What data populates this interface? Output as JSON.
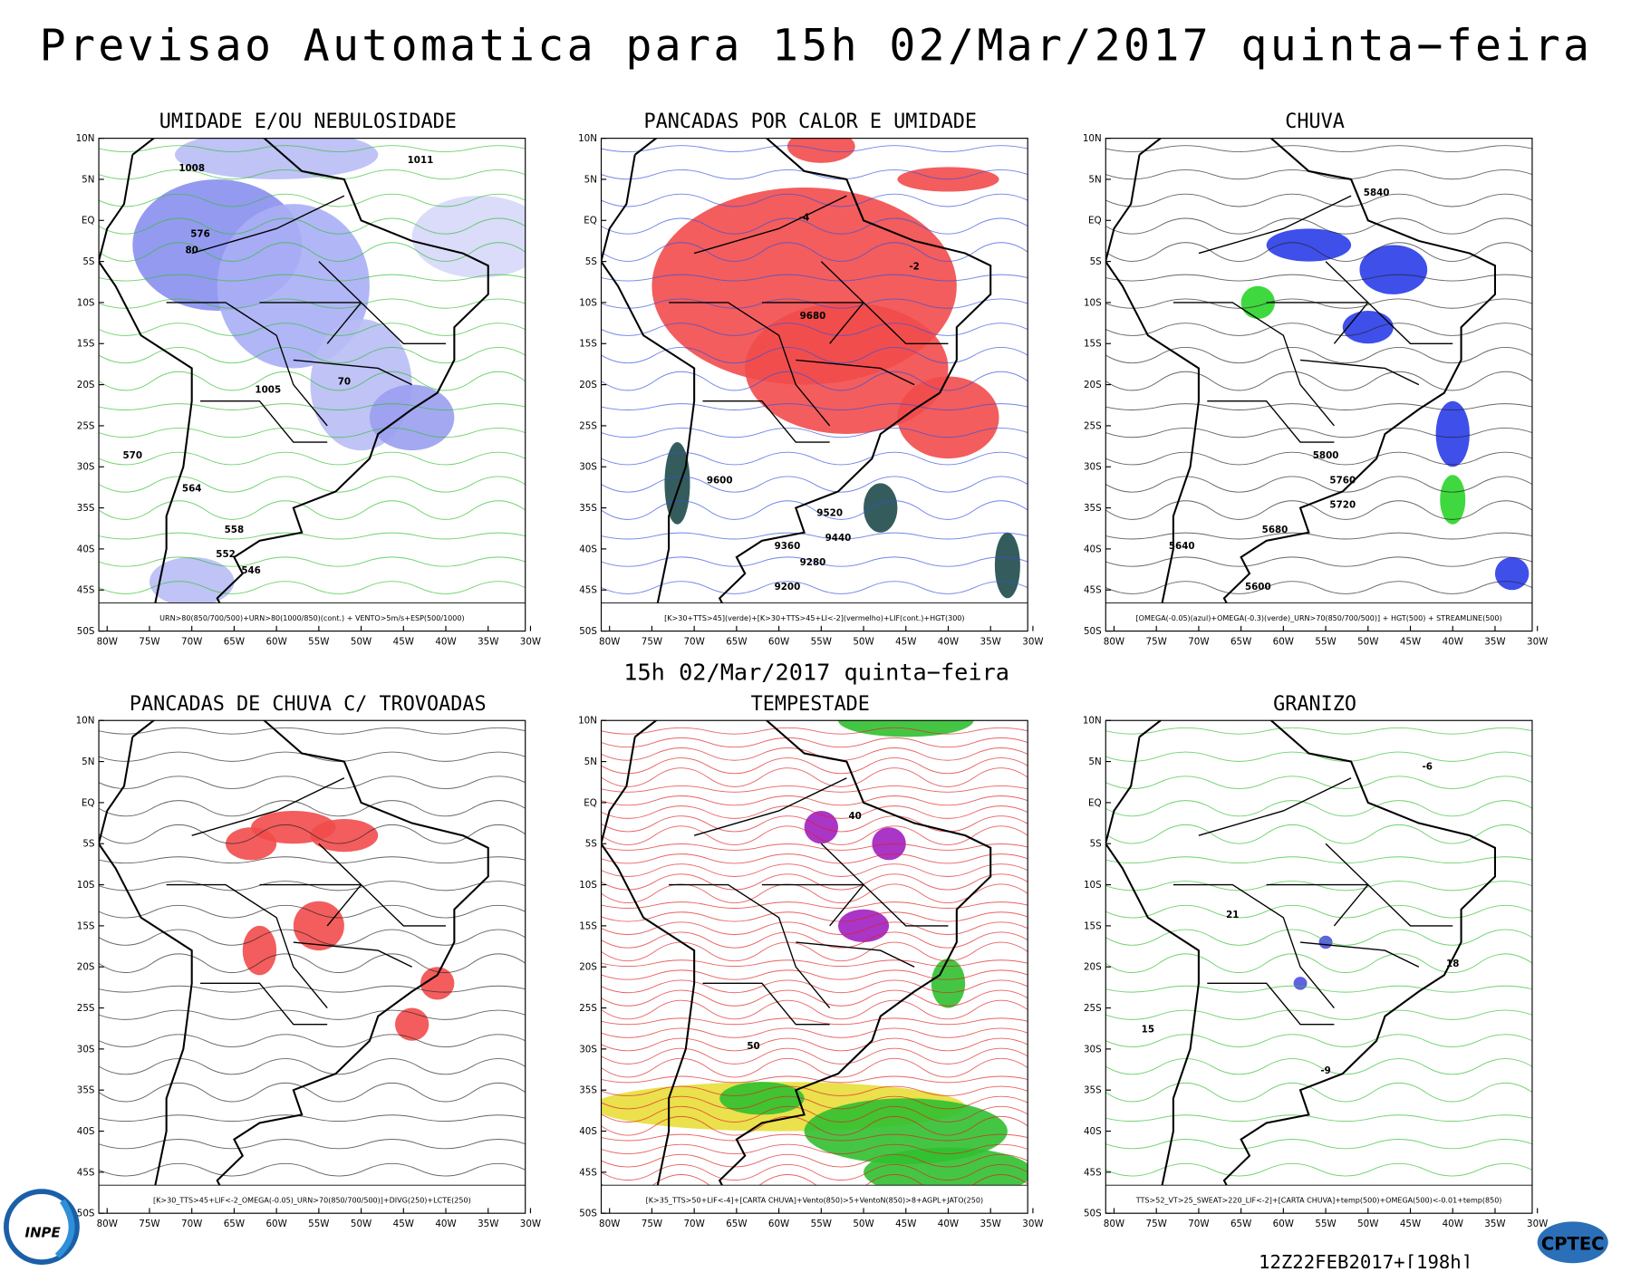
{
  "title": "Previsao Automatica  para 15h 02/Mar/2017 quinta−feira",
  "subtitle": "15h 02/Mar/2017 quinta−feira",
  "lat_ticks": [
    "10N",
    "5N",
    "EQ",
    "5S",
    "10S",
    "15S",
    "20S",
    "25S",
    "30S",
    "35S",
    "40S",
    "45S",
    "50S"
  ],
  "lon_ticks": [
    "80W",
    "75W",
    "70W",
    "65W",
    "60W",
    "55W",
    "50W",
    "45W",
    "40W",
    "35W",
    "30W"
  ],
  "panels": [
    {
      "title": "UMIDADE E/OU NEBULOSIDADE",
      "legend": "URN>80(850/700/500)+URN>80(1000/850)(cont.) + VENTO>5m/s+ESP(500/1000)",
      "labels": [
        "1008",
        "1011",
        "576",
        "80",
        "70",
        "1005",
        "570",
        "564",
        "558",
        "552",
        "546"
      ]
    },
    {
      "title": "PANCADAS POR CALOR E UMIDADE",
      "legend": "[K>30+TTS>45](verde)+[K>30+TTS>45+LI<-2](vermelho)+LIF(cont.)+HGT(300)",
      "labels": [
        "-4",
        "-2",
        "9680",
        "9600",
        "9520",
        "9440",
        "9360",
        "9280",
        "9200"
      ]
    },
    {
      "title": "CHUVA",
      "legend": "[OMEGA(-0.05)(azul)+OMEGA(-0.3)(verde)_URN>70(850/700/500)] + HGT(500) + STREAMLINE(500)",
      "labels": [
        "5840",
        "5800",
        "5760",
        "5720",
        "5680",
        "5640",
        "5600"
      ]
    },
    {
      "title": "PANCADAS DE CHUVA C/ TROVOADAS",
      "legend": "[K>30_TTS>45+LIF<-2_OMEGA(-0.05)_URN>70(850/700/500)]+DIVG(250)+LCTE(250)",
      "labels": []
    },
    {
      "title": "TEMPESTADE",
      "legend": "[K>35_TTS>50+LIF<-4]+[CARTA CHUVA]+Vento(850)>5+VentoN(850)>8+AGPL+JATO(250)",
      "labels": [
        "40",
        "50"
      ]
    },
    {
      "title": "GRANIZO",
      "legend": "TTS>52_VT>25_SWEAT>220_LIF<-2]+[CARTA CHUVA]+temp(500)+OMEGA(500)<-0.01+temp(850)",
      "labels": [
        "18",
        "15",
        "21",
        "-6",
        "-9"
      ]
    }
  ],
  "footer": "12Z22FEB2017+[198h]",
  "logos": {
    "left": "INPE",
    "right": "CPTEC"
  }
}
